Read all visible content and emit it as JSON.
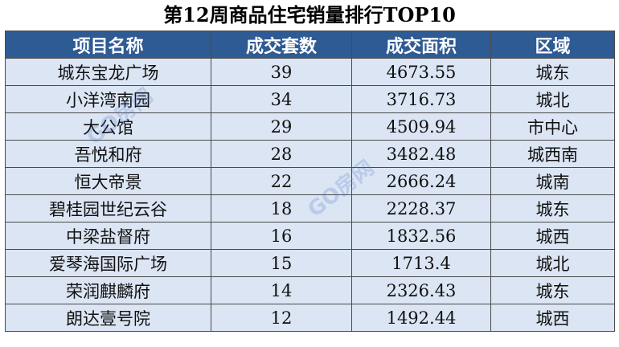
{
  "title": "第12周商品住宅销量排行TOP10",
  "table": {
    "headers": [
      "项目名称",
      "成交套数",
      "成交面积",
      "区域"
    ],
    "rows": [
      [
        "城东宝龙广场",
        "39",
        "4673.55",
        "城东"
      ],
      [
        "小洋湾南园",
        "34",
        "3716.73",
        "城北"
      ],
      [
        "大公馆",
        "29",
        "4509.94",
        "市中心"
      ],
      [
        "吾悦和府",
        "28",
        "3482.48",
        "城西南"
      ],
      [
        "恒大帝景",
        "22",
        "2666.24",
        "城南"
      ],
      [
        "碧桂园世纪云谷",
        "18",
        "2228.37",
        "城东"
      ],
      [
        "中梁盐督府",
        "16",
        "1832.56",
        "城西"
      ],
      [
        "爱琴海国际广场",
        "15",
        "1713.4",
        "城北"
      ],
      [
        "荣润麒麟府",
        "14",
        "2326.43",
        "城东"
      ],
      [
        "朗达壹号院",
        "12",
        "1492.44",
        "城西"
      ]
    ]
  },
  "watermark": {
    "text_1": "GO房网",
    "text_2": "GO房网"
  },
  "colors": {
    "header_bg": "#2f5b94",
    "cell_bg": "#dbe5f3"
  }
}
